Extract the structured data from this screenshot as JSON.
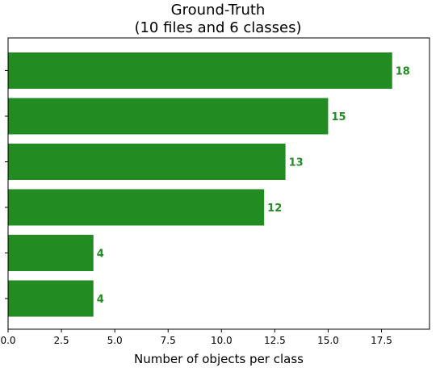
{
  "chart_data": {
    "type": "bar",
    "orientation": "horizontal",
    "title_line1": "Ground-Truth",
    "title_line2": "(10 files and 6 classes)",
    "xlabel": "Number of objects per class",
    "ylabel": "",
    "xlim": [
      0,
      19.75
    ],
    "xticks": [
      "0.0",
      "2.5",
      "5.0",
      "7.5",
      "10.0",
      "12.5",
      "15.0",
      "17.5"
    ],
    "xtick_values": [
      0,
      2.5,
      5,
      7.5,
      10,
      12.5,
      15,
      17.5
    ],
    "categories": [
      "",
      "",
      "",
      "",
      "",
      ""
    ],
    "values": [
      18,
      15,
      13,
      12,
      4,
      4
    ],
    "value_labels": [
      "18",
      "15",
      "13",
      "12",
      "4",
      "4"
    ],
    "bar_color": "#228b22",
    "label_color": "#228b22",
    "grid": false,
    "legend": "none"
  }
}
